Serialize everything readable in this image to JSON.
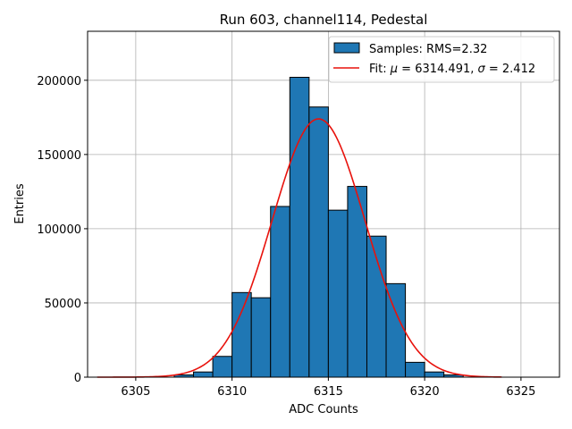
{
  "chart_data": {
    "type": "bar",
    "title": "Run 603, channel114, Pedestal",
    "xlabel": "ADC Counts",
    "ylabel": "Entries",
    "xlim": [
      6302.5,
      6327.0
    ],
    "ylim": [
      0,
      233000
    ],
    "x_ticks": [
      6305,
      6310,
      6315,
      6320,
      6325
    ],
    "x_tick_labels": [
      "6305",
      "6310",
      "6315",
      "6320",
      "6325"
    ],
    "y_ticks": [
      0,
      50000,
      100000,
      150000,
      200000
    ],
    "y_tick_labels": [
      "0",
      "50000",
      "100000",
      "150000",
      "200000"
    ],
    "grid": true,
    "legend_position": "top-right",
    "histogram": {
      "name": "Samples: RMS=2.32",
      "color": "#1f77b4",
      "edge_color": "#000000",
      "bin_edges": [
        6307,
        6308,
        6309,
        6310,
        6311,
        6312,
        6313,
        6314,
        6315,
        6316,
        6317,
        6318,
        6319,
        6320,
        6321,
        6322
      ],
      "values": [
        1500,
        3500,
        14000,
        57000,
        53500,
        115000,
        202000,
        182000,
        112500,
        128500,
        95000,
        63000,
        10000,
        3500,
        1500
      ]
    },
    "fit": {
      "name": "Fit: μ = 6314.491, σ = 2.412",
      "legend_prefix": "Fit: ",
      "legend_mu": "μ",
      "legend_mid": " = 6314.491, ",
      "legend_sigma": "σ",
      "legend_suffix": " = 2.412",
      "color": "#e8120c",
      "mu": 6314.491,
      "sigma": 2.412,
      "amplitude": 174000,
      "x_range": [
        6303,
        6324
      ]
    }
  }
}
